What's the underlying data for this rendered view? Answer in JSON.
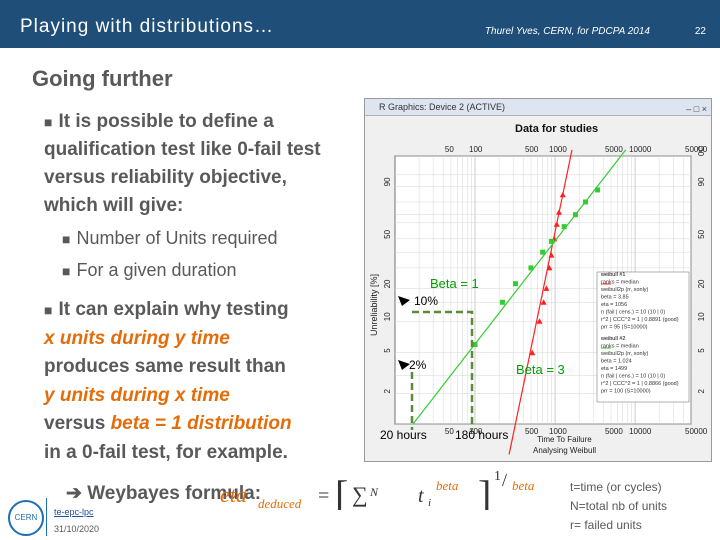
{
  "header": {
    "title": "Playing with distributions…",
    "author": "Thurel Yves, CERN, for PDCPA 2014",
    "slide_number": "22"
  },
  "heading": "Going further",
  "bullets": {
    "b1": "It is possible to define a qualification test like 0-fail test versus reliability objective, which will give:",
    "sub1": "Number of Units required",
    "sub2": "For a given duration",
    "b2_part1": "It can explain why testing",
    "b2_x_units": "x units during y time",
    "b2_part2": "produces same result than",
    "b2_y_units": "y units during x time",
    "b2_versus": "versus",
    "b2_beta": "beta = 1 distribution",
    "b2_part3": "in a 0-fail test, for example.",
    "formula_lead": "Weybayes formula:"
  },
  "formula": {
    "eta": "eta",
    "sub": "deduced",
    "sum": "N",
    "t": "t",
    "i": "i",
    "beta": "beta",
    "exp_num": "1",
    "exp_den": "beta"
  },
  "note": [
    "t=time (or cycles)",
    "N=total nb of units",
    "r= failed units"
  ],
  "footer": {
    "link": "te-epc-lpc",
    "date": "31/10/2020",
    "logo": "CERN"
  },
  "plot_window": {
    "title": "R Graphics: Device 2 (ACTIVE)",
    "controls": "– □ ×",
    "chart_title": "Data for studies",
    "top_ticks": [
      "50",
      "100",
      "500",
      "1000",
      "5000",
      "10000",
      "50000"
    ],
    "bottom_ticks": [
      "50",
      "100",
      "500",
      "1000",
      "5000",
      "10000",
      "50000"
    ],
    "left_ticks": [
      "90",
      "50",
      "20",
      "10",
      "5",
      "2"
    ],
    "right_ticks": [
      "0C",
      "90",
      "50",
      "20",
      "10",
      "5",
      "2"
    ],
    "ylabel": "Unreliability [%]",
    "xlabel": "Time To Failure",
    "xlabel2": "Analysing Weibull",
    "legend_red": [
      "weibull #1",
      "ranks = median",
      "weibull2p (rr, xonly)",
      "beta = 3.85",
      "eta = 1056",
      "n (fail | cens.) = 10 (10 | 0)",
      "r^2 | CCC^2 = 1 | 0.8891 (good)",
      "prr = 95 (S=10000)"
    ],
    "legend_green": [
      "weibull #2",
      "ranks = median",
      "weibull2p (rr, xonly)",
      "beta = 1.024",
      "eta = 1499",
      "n (fail | cens.) = 10 (10 | 0)",
      "r^2 | CCC^2 = 1 | 0.8866 (good)",
      "prr = 100 (S=10000)"
    ]
  },
  "annotations": {
    "beta1": "Beta = 1",
    "pct10": "10%",
    "pct2": "2%",
    "beta3": "Beta = 3",
    "h20": "20 hours",
    "h180": "180 hours"
  },
  "colors": {
    "header_bg": "#1f4e79",
    "accent_orange": "#e46c0a",
    "green_line": "#33cc33",
    "red_line": "#ff2020",
    "dashed_guide": "#5a8a3a"
  },
  "chart_data": {
    "type": "line",
    "title": "Data for studies",
    "xlabel": "Time To Failure",
    "ylabel": "Unreliability [%]",
    "x_scale": "log",
    "y_scale": "weibull",
    "xlim": [
      10,
      50000
    ],
    "series": [
      {
        "name": "weibull #1",
        "beta": 3.85,
        "eta": 1056,
        "points": [
          [
            520,
            5
          ],
          [
            640,
            10
          ],
          [
            720,
            15
          ],
          [
            780,
            20
          ],
          [
            850,
            30
          ],
          [
            900,
            38
          ],
          [
            980,
            50
          ],
          [
            1050,
            62
          ],
          [
            1120,
            72
          ],
          [
            1250,
            85
          ]
        ]
      },
      {
        "name": "weibull #2",
        "beta": 1.024,
        "eta": 1499,
        "points": [
          [
            100,
            6
          ],
          [
            220,
            15
          ],
          [
            320,
            22
          ],
          [
            500,
            30
          ],
          [
            700,
            40
          ],
          [
            900,
            48
          ],
          [
            1300,
            60
          ],
          [
            1800,
            70
          ],
          [
            2400,
            80
          ],
          [
            3400,
            88
          ]
        ]
      }
    ]
  }
}
